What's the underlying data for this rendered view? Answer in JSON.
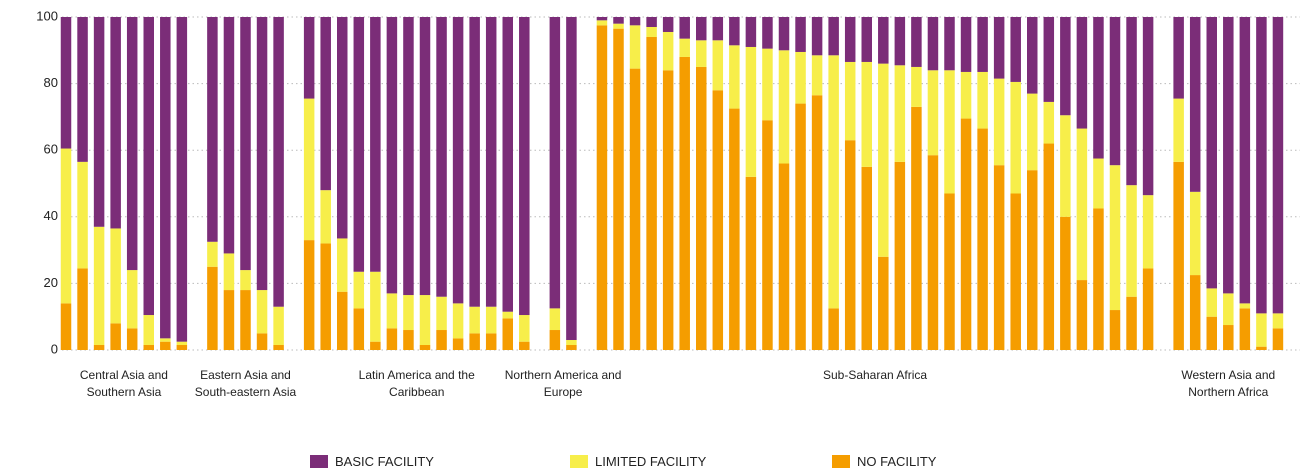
{
  "chart_data": {
    "type": "grouped-stacked-bar",
    "groups": [
      "Central Asia and Southern Asia",
      "Eastern Asia and South-eastern Asia",
      "Latin America and the Caribbean",
      "Northern America and Europe",
      "Sub-Saharan Africa",
      "Western Asia and Northern Africa"
    ],
    "series": [
      {
        "name": "BASIC FACILITY",
        "color": "#7b2d78",
        "values": [
          [
            39.5,
            43.5,
            63,
            63.5,
            76,
            89.5,
            96.5,
            97.5
          ],
          [
            67.5,
            71,
            76,
            82,
            87
          ],
          [
            24.5,
            52,
            66.5,
            76.5,
            76.5,
            83,
            83.5,
            83.5,
            84,
            86,
            87,
            87,
            88.5,
            89.5
          ],
          [
            87.5,
            97
          ],
          [
            1,
            2,
            2.5,
            3,
            4.5,
            6.5,
            7,
            7,
            8.5,
            9,
            9.5,
            10,
            10.5,
            11.5,
            11.5,
            13.5,
            13.5,
            14,
            14.5,
            15,
            16,
            16,
            16.5,
            16.5,
            18.5,
            19.5,
            23,
            25.5,
            29.5,
            33.5,
            42.5,
            44.5,
            50.5,
            53.5
          ],
          [
            24.5,
            52.5,
            81.5,
            83,
            86,
            89,
            89
          ]
        ]
      },
      {
        "name": "LIMITED FACILITY",
        "color": "#f7ee4a",
        "values": [
          [
            46.5,
            32,
            35.5,
            28.5,
            17.5,
            9,
            1,
            1
          ],
          [
            7.5,
            11,
            6,
            13,
            11.5
          ],
          [
            42.5,
            16,
            16,
            11,
            21,
            10.5,
            10.5,
            15,
            10,
            10.5,
            8,
            8,
            2,
            8
          ],
          [
            6.5,
            1.5
          ],
          [
            1.5,
            1.5,
            13,
            3,
            11.5,
            5.5,
            8,
            15,
            19,
            39,
            21.5,
            34,
            15.5,
            12,
            76,
            23.5,
            31.5,
            58,
            29,
            12,
            25.5,
            37,
            14,
            17,
            26,
            33.5,
            23,
            12.5,
            30.5,
            45.5,
            15,
            43.5,
            33.5,
            22
          ],
          [
            19,
            25,
            8.5,
            9.5,
            1.5,
            10,
            4.5
          ]
        ]
      },
      {
        "name": "NO FACILITY",
        "color": "#f59d00",
        "values": [
          [
            14,
            24.5,
            1.5,
            8,
            6.5,
            1.5,
            2.5,
            1.5
          ],
          [
            25,
            18,
            18,
            5,
            1.5
          ],
          [
            33,
            32,
            17.5,
            12.5,
            2.5,
            6.5,
            6,
            1.5,
            6,
            3.5,
            5,
            5,
            9.5,
            2.5
          ],
          [
            6,
            1.5
          ],
          [
            97.5,
            96.5,
            84.5,
            94,
            84,
            88,
            85,
            78,
            72.5,
            52,
            69,
            56,
            74,
            76.5,
            12.5,
            63,
            55,
            28,
            56.5,
            73,
            58.5,
            47,
            69.5,
            66.5,
            55.5,
            47,
            54,
            62,
            40,
            21,
            42.5,
            12,
            16,
            24.5
          ],
          [
            56.5,
            22.5,
            10,
            7.5,
            12.5,
            1,
            6.5
          ]
        ]
      }
    ],
    "stacked": true,
    "ylim": [
      0,
      100
    ],
    "yticks": [
      0,
      20,
      40,
      60,
      80,
      100
    ],
    "grid": true
  }
}
